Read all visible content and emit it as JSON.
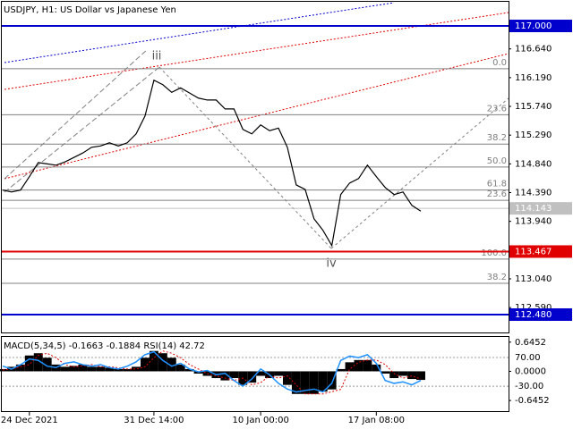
{
  "chart_data": [
    {
      "type": "line",
      "title": "USDJPY, H1:  US Dollar vs Japanese Yen",
      "categories": [
        null,
        null,
        null,
        "24 Dec 2021",
        null,
        null,
        null,
        null,
        null,
        null,
        null,
        null,
        null,
        null,
        null,
        null,
        null,
        "31 Dec 14:00",
        null,
        null,
        null,
        null,
        null,
        null,
        null,
        null,
        null,
        null,
        null,
        "10 Jan 00:00",
        null,
        null,
        null,
        null,
        null,
        null,
        null,
        null,
        null,
        null,
        null,
        null,
        "17 Jan 08:00",
        null,
        null,
        null,
        null,
        null
      ],
      "values": [
        114.43,
        114.4,
        114.43,
        114.64,
        114.86,
        114.84,
        114.82,
        114.87,
        114.94,
        115.01,
        115.1,
        115.12,
        115.17,
        115.12,
        115.17,
        115.31,
        115.59,
        116.15,
        116.08,
        115.96,
        116.03,
        115.95,
        115.87,
        115.84,
        115.84,
        115.7,
        115.7,
        115.38,
        115.31,
        115.45,
        115.36,
        115.4,
        115.1,
        114.51,
        114.44,
        113.98,
        113.8,
        113.56,
        114.36,
        114.54,
        114.61,
        114.82,
        114.64,
        114.47,
        114.36,
        114.4,
        114.19,
        114.1
      ],
      "color": "#000000",
      "ylim": [
        112.2,
        117.406
      ],
      "yticks": [
        {
          "value": 116.64,
          "label": "116.640"
        },
        {
          "value": 116.19,
          "label": "116.190"
        },
        {
          "value": 115.74,
          "label": "115.740"
        },
        {
          "value": 115.29,
          "label": "115.290"
        },
        {
          "value": 114.84,
          "label": "114.840"
        },
        {
          "value": 114.39,
          "label": "114.390"
        },
        {
          "value": 113.94,
          "label": "113.940"
        },
        {
          "value": 113.04,
          "label": "113.040"
        },
        {
          "value": 112.59,
          "label": "112.590"
        }
      ],
      "levels": [
        {
          "value": 116.33,
          "label": "0.0"
        },
        {
          "value": 115.61,
          "label": "23.6"
        },
        {
          "value": 115.15,
          "label": "38.2"
        },
        {
          "value": 114.79,
          "label": "50.0"
        },
        {
          "value": 114.43,
          "label": "61.8"
        },
        {
          "value": 114.27,
          "label": "23.6"
        },
        {
          "value": 113.35,
          "label": "100.0"
        },
        {
          "value": 112.97,
          "label": "38.2"
        }
      ],
      "hlines": [
        {
          "value": 117.0,
          "label": "117.000",
          "color": "#0000cc"
        },
        {
          "value": 113.467,
          "label": "113.467",
          "color": "#e00000"
        },
        {
          "value": 112.48,
          "label": "112.480",
          "color": "#0000cc"
        }
      ],
      "last_price": {
        "value": 114.143,
        "label": "114.143",
        "color": "#c0c0c0"
      },
      "annotations": [
        "iii",
        "iv"
      ]
    },
    {
      "type": "macd",
      "label": "MACD(5,34,5) -0.1663 -0.1884 RSI(14) 42.72",
      "histogram": [
        0.05,
        0.1,
        0.15,
        0.35,
        0.4,
        0.3,
        0.15,
        0.1,
        0.12,
        0.15,
        0.1,
        0.1,
        0.08,
        0.05,
        0.05,
        0.1,
        0.3,
        0.45,
        0.4,
        0.3,
        0.15,
        0.05,
        -0.05,
        -0.1,
        -0.15,
        -0.2,
        -0.15,
        -0.3,
        -0.25,
        -0.1,
        -0.15,
        -0.1,
        -0.3,
        -0.5,
        -0.5,
        -0.5,
        -0.45,
        -0.4,
        0.05,
        0.2,
        0.25,
        0.25,
        0.15,
        -0.05,
        -0.15,
        -0.1,
        -0.17,
        -0.19
      ],
      "signal": [
        0.03,
        0.05,
        0.1,
        0.15,
        0.35,
        0.4,
        0.3,
        0.15,
        0.1,
        0.12,
        0.15,
        0.1,
        0.1,
        0.08,
        0.05,
        0.05,
        0.1,
        0.3,
        0.45,
        0.4,
        0.3,
        0.15,
        0.05,
        -0.05,
        -0.1,
        -0.15,
        -0.2,
        -0.15,
        -0.3,
        -0.25,
        -0.1,
        -0.15,
        -0.1,
        -0.3,
        -0.5,
        -0.5,
        -0.5,
        -0.45,
        -0.4,
        0.05,
        0.2,
        0.25,
        0.25,
        0.15,
        -0.05,
        -0.15,
        -0.1,
        -0.17
      ],
      "rsi": [
        40,
        30,
        45,
        65,
        60,
        40,
        35,
        50,
        55,
        45,
        40,
        45,
        35,
        30,
        40,
        55,
        80,
        90,
        60,
        40,
        50,
        30,
        20,
        25,
        10,
        15,
        -10,
        -30,
        -5,
        30,
        10,
        -20,
        -40,
        -50,
        -45,
        -40,
        -50,
        -20,
        60,
        75,
        70,
        80,
        50,
        -10,
        -20,
        -15,
        -25,
        -10
      ],
      "colors": {
        "histogram": "#000000",
        "signal": "#e00000",
        "rsi": "#1e90ff"
      },
      "ylim": [
        -0.9,
        0.78
      ],
      "yticks": [
        {
          "value": 0.6452,
          "label": "0.6452"
        },
        {
          "value": 0,
          "label": "0.0000"
        },
        {
          "value": -0.6452,
          "label": "-0.6452"
        }
      ],
      "y2lim": [
        -120,
        145
      ],
      "y2ticks": [
        {
          "value": 70,
          "label": "70.00"
        },
        {
          "value": -30,
          "label": "-30.00"
        }
      ]
    }
  ]
}
